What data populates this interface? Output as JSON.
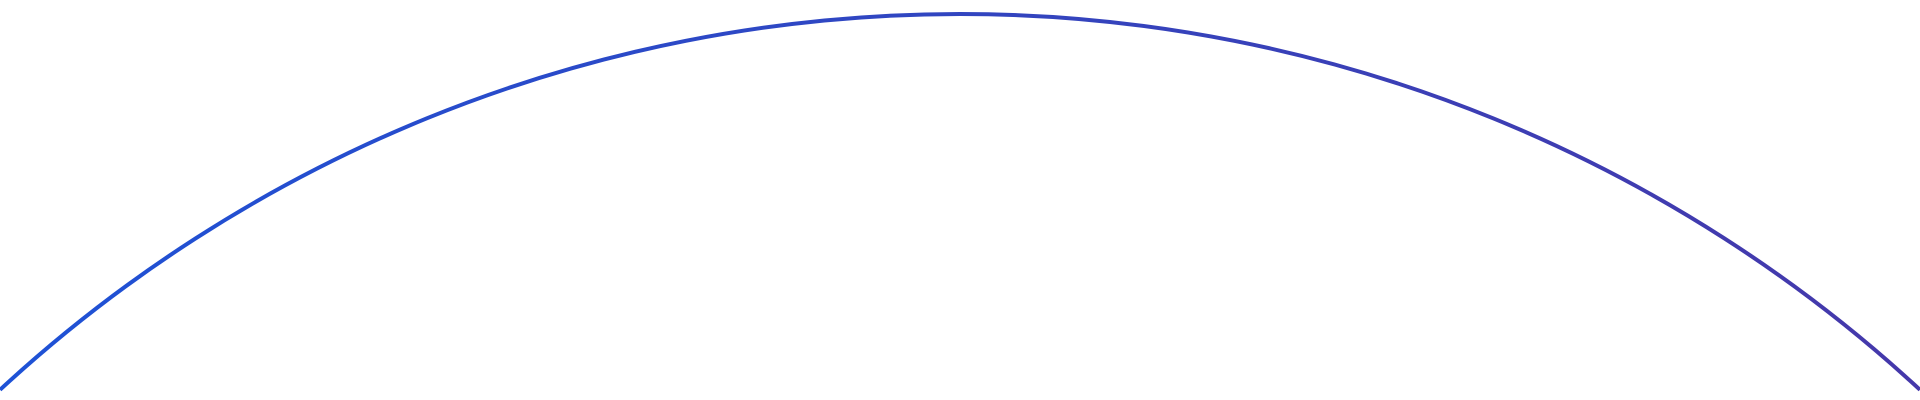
{
  "decoration": {
    "shape": "arc",
    "colors": {
      "stroke_start": "#1e52d6",
      "stroke_end": "#4538aa",
      "background": "#ffffff"
    }
  }
}
